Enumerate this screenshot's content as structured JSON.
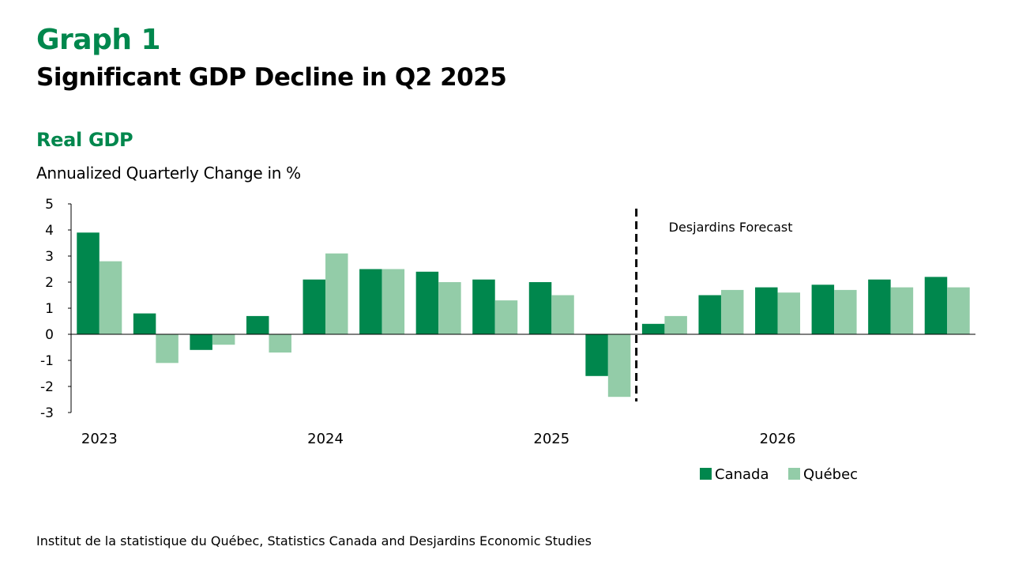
{
  "header": {
    "graph_number": "Graph 1",
    "title": "Significant GDP Decline in Q2 2025"
  },
  "source": "Institut de la statistique du Québec, Statistics Canada and Desjardins Economic Studies",
  "colors": {
    "brand_green": "#00874d",
    "canada": "#00874d",
    "quebec": "#93cca8"
  },
  "chart_data": {
    "type": "bar",
    "title": "Real GDP",
    "subtitle": "Annualized Quarterly Change in %",
    "categories": [
      "2023 Q1",
      "2023 Q2",
      "2023 Q3",
      "2023 Q4",
      "2024 Q1",
      "2024 Q2",
      "2024 Q3",
      "2024 Q4",
      "2025 Q1",
      "2025 Q2",
      "2025 Q3",
      "2025 Q4",
      "2026 Q1",
      "2026 Q2",
      "2026 Q3",
      "2026 Q4"
    ],
    "year_labels": [
      "2023",
      "2024",
      "2025",
      "2026"
    ],
    "series": [
      {
        "name": "Canada",
        "values": [
          3.9,
          0.8,
          -0.6,
          0.7,
          2.1,
          2.5,
          2.4,
          2.1,
          2.0,
          -1.6,
          0.4,
          1.5,
          1.8,
          1.9,
          2.1,
          2.2
        ]
      },
      {
        "name": "Québec",
        "values": [
          2.8,
          -1.1,
          -0.4,
          -0.7,
          3.1,
          2.5,
          2.0,
          1.3,
          1.5,
          -2.4,
          0.7,
          1.7,
          1.6,
          1.7,
          1.8,
          1.8
        ]
      }
    ],
    "ylim": [
      -3,
      5
    ],
    "yticks": [
      "-3",
      "-2",
      "-1",
      "0",
      "1",
      "2",
      "3",
      "4",
      "5"
    ],
    "forecast_annotation": "Desjardins Forecast",
    "forecast_start_category": "2025 Q3",
    "legend_position": "bottom-right",
    "grid": false
  }
}
